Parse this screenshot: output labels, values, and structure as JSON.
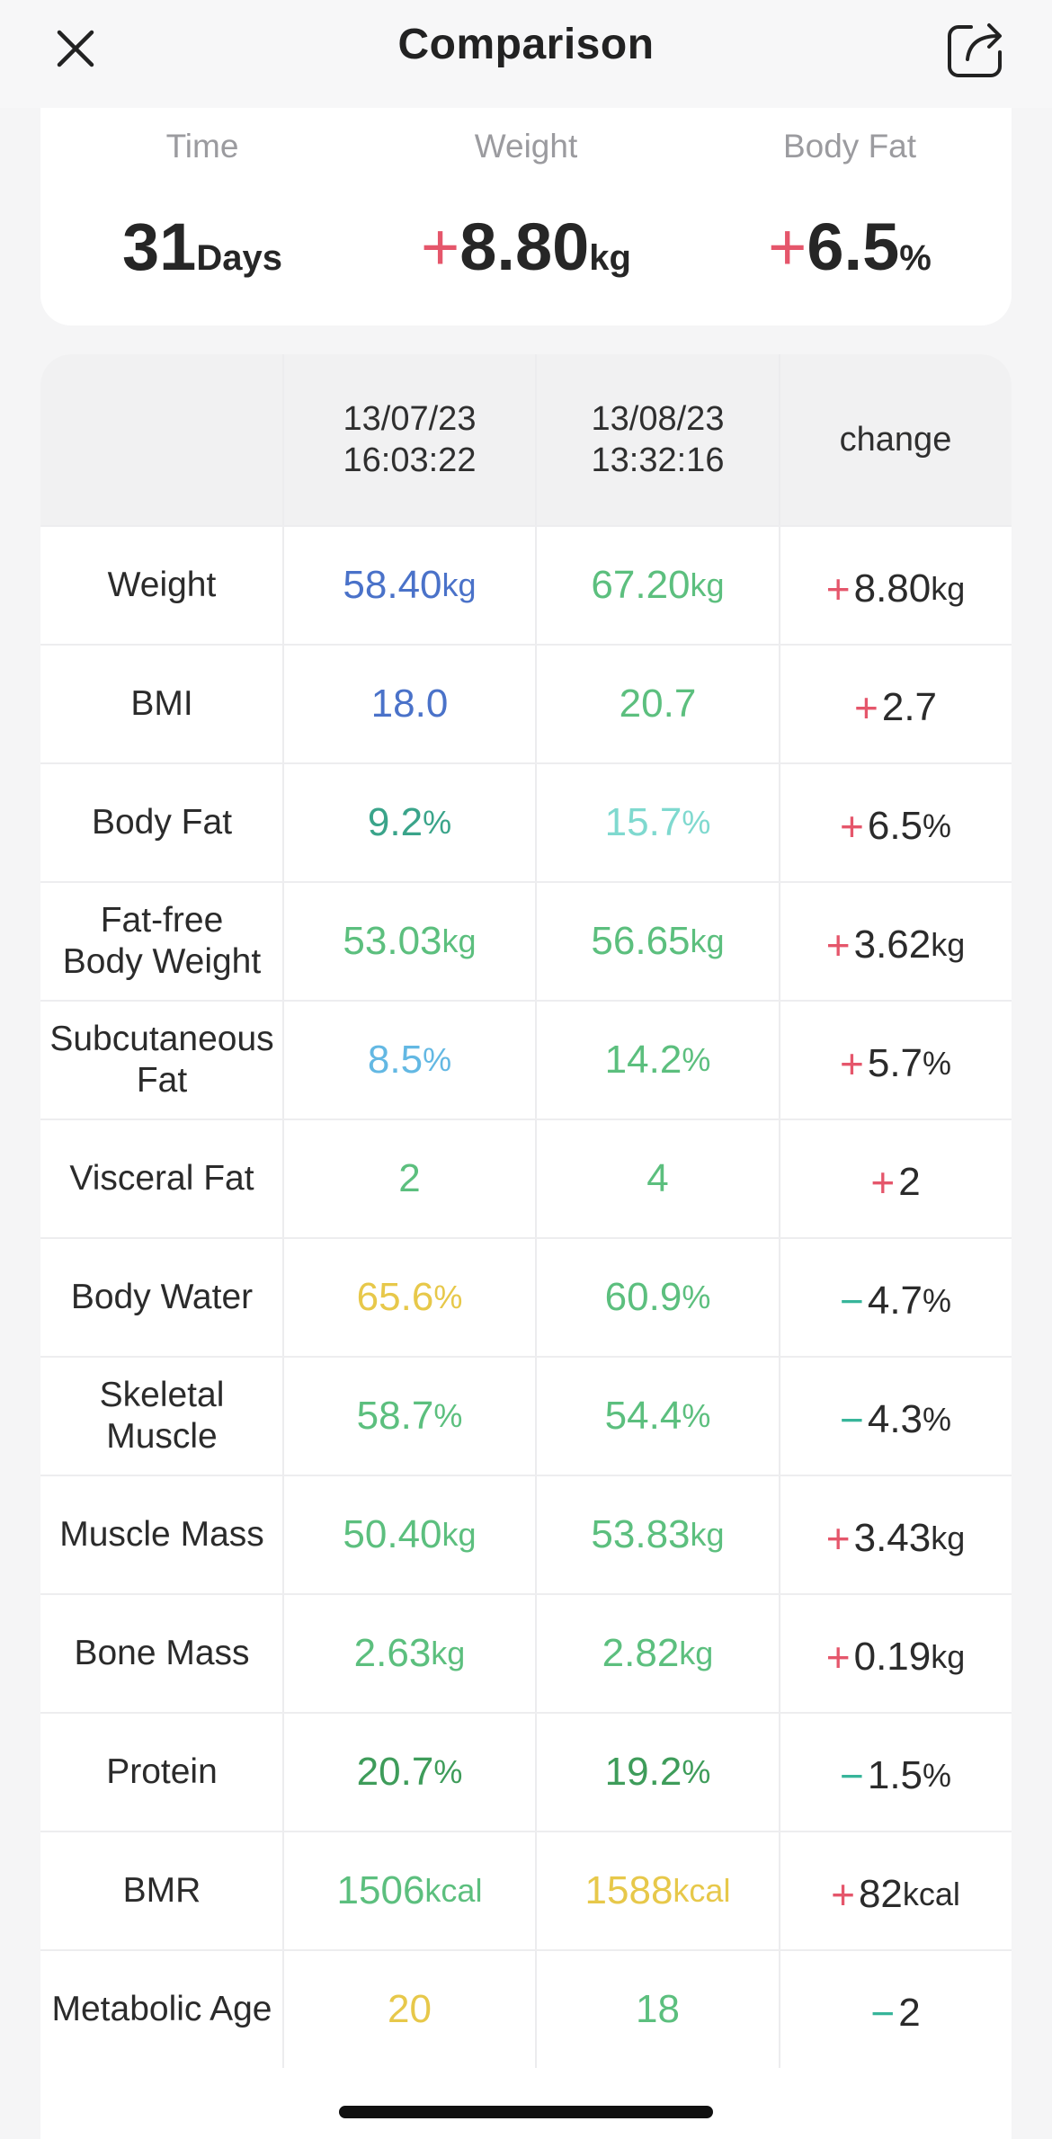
{
  "nav": {
    "title": "Comparison"
  },
  "summary": [
    {
      "label": "Time",
      "sign": "",
      "value": "31",
      "unit": "Days"
    },
    {
      "label": "Weight",
      "sign": "+",
      "value": "8.80",
      "unit": "kg"
    },
    {
      "label": "Body Fat",
      "sign": "+",
      "value": "6.5",
      "unit": "%"
    }
  ],
  "table": {
    "headers": [
      "",
      "13/07/23\n16:03:22",
      "13/08/23\n13:32:16",
      "change"
    ],
    "colors": {
      "blue": "#4a72c9",
      "green": "#5cbf7e",
      "teal": "#3aa48a",
      "mint": "#7fd9cf",
      "sky": "#63b8e3",
      "yellow": "#e7c84a",
      "darkgreen": "#3e9c5a",
      "plus": "#e5566b",
      "minus": "#37b59a"
    },
    "rows": [
      {
        "name": "Weight",
        "v1": "58.40",
        "u1": "kg",
        "c1": "#4a72c9",
        "v2": "67.20",
        "u2": "kg",
        "c2": "#5cbf7e",
        "sign": "+",
        "chg": "8.80",
        "cu": "kg"
      },
      {
        "name": "BMI",
        "v1": "18.0",
        "u1": "",
        "c1": "#4a72c9",
        "v2": "20.7",
        "u2": "",
        "c2": "#5cbf7e",
        "sign": "+",
        "chg": "2.7",
        "cu": ""
      },
      {
        "name": "Body Fat",
        "v1": "9.2",
        "u1": "%",
        "c1": "#3aa48a",
        "v2": "15.7",
        "u2": "%",
        "c2": "#7fd9cf",
        "sign": "+",
        "chg": "6.5",
        "cu": "%"
      },
      {
        "name": "Fat-free\nBody Weight",
        "v1": "53.03",
        "u1": "kg",
        "c1": "#5cbf7e",
        "v2": "56.65",
        "u2": "kg",
        "c2": "#5cbf7e",
        "sign": "+",
        "chg": "3.62",
        "cu": "kg"
      },
      {
        "name": "Subcutaneous\nFat",
        "v1": "8.5",
        "u1": "%",
        "c1": "#63b8e3",
        "v2": "14.2",
        "u2": "%",
        "c2": "#5cbf7e",
        "sign": "+",
        "chg": "5.7",
        "cu": "%"
      },
      {
        "name": "Visceral Fat",
        "v1": "2",
        "u1": "",
        "c1": "#5cbf7e",
        "v2": "4",
        "u2": "",
        "c2": "#5cbf7e",
        "sign": "+",
        "chg": "2",
        "cu": ""
      },
      {
        "name": "Body Water",
        "v1": "65.6",
        "u1": "%",
        "c1": "#e7c84a",
        "v2": "60.9",
        "u2": "%",
        "c2": "#5cbf7e",
        "sign": "−",
        "chg": "4.7",
        "cu": "%"
      },
      {
        "name": "Skeletal\nMuscle",
        "v1": "58.7",
        "u1": "%",
        "c1": "#5cbf7e",
        "v2": "54.4",
        "u2": "%",
        "c2": "#5cbf7e",
        "sign": "−",
        "chg": "4.3",
        "cu": "%"
      },
      {
        "name": "Muscle Mass",
        "v1": "50.40",
        "u1": "kg",
        "c1": "#5cbf7e",
        "v2": "53.83",
        "u2": "kg",
        "c2": "#5cbf7e",
        "sign": "+",
        "chg": "3.43",
        "cu": "kg"
      },
      {
        "name": "Bone Mass",
        "v1": "2.63",
        "u1": "kg",
        "c1": "#5cbf7e",
        "v2": "2.82",
        "u2": "kg",
        "c2": "#5cbf7e",
        "sign": "+",
        "chg": "0.19",
        "cu": "kg"
      },
      {
        "name": "Protein",
        "v1": "20.7",
        "u1": "%",
        "c1": "#3e9c5a",
        "v2": "19.2",
        "u2": "%",
        "c2": "#3e9c5a",
        "sign": "−",
        "chg": "1.5",
        "cu": "%"
      },
      {
        "name": "BMR",
        "v1": "1506",
        "u1": "kcal",
        "c1": "#5cbf7e",
        "v2": "1588",
        "u2": "kcal",
        "c2": "#e7c84a",
        "sign": "+",
        "chg": "82",
        "cu": "kcal"
      },
      {
        "name": "Metabolic Age",
        "v1": "20",
        "u1": "",
        "c1": "#e7c84a",
        "v2": "18",
        "u2": "",
        "c2": "#5cbf7e",
        "sign": "−",
        "chg": "2",
        "cu": ""
      }
    ]
  },
  "icons": {
    "close": "close-icon",
    "share": "share-icon"
  }
}
